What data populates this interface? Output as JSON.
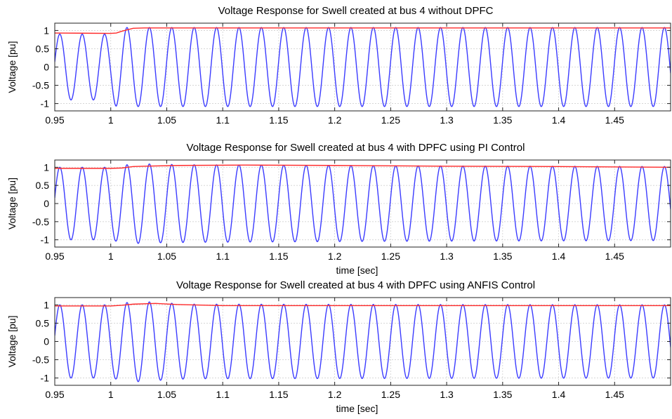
{
  "chart_data": [
    {
      "type": "line",
      "title": "Voltage Response for Swell created at bus 4 without DPFC",
      "xlabel": "",
      "ylabel": "Voltage [pu]",
      "xlim": [
        0.95,
        1.5
      ],
      "ylim": [
        -1.2,
        1.2
      ],
      "xticks": [
        0.95,
        1.0,
        1.05,
        1.1,
        1.15,
        1.2,
        1.25,
        1.3,
        1.35,
        1.4,
        1.45
      ],
      "xtick_labels": [
        "0.95",
        "1",
        "1.05",
        "1.1",
        "1.15",
        "1.2",
        "1.25",
        "1.3",
        "1.35",
        "1.4",
        "1.45"
      ],
      "yticks": [
        -1,
        -0.5,
        0,
        0.5,
        1
      ],
      "ytick_labels": [
        "-1",
        "-0.5",
        "0",
        "0.5",
        "1"
      ],
      "grid": true,
      "frequency_hz": 50,
      "series": [
        {
          "kind": "instantaneous",
          "color": "#3b3bff",
          "amplitude_points": [
            [
              0.95,
              0.9
            ],
            [
              1.0,
              0.9
            ],
            [
              1.005,
              1.08
            ],
            [
              1.025,
              1.08
            ],
            [
              1.5,
              1.08
            ]
          ]
        },
        {
          "kind": "rms",
          "color": "#ff2a2a",
          "points": [
            [
              0.95,
              0.93
            ],
            [
              1.0,
              0.92
            ],
            [
              1.005,
              0.93
            ],
            [
              1.01,
              0.98
            ],
            [
              1.02,
              1.06
            ],
            [
              1.03,
              1.07
            ],
            [
              1.5,
              1.07
            ]
          ]
        }
      ]
    },
    {
      "type": "line",
      "title": "Voltage Response for Swell created at bus 4 with DPFC using PI Control",
      "xlabel": "time [sec]",
      "ylabel": "Voltage [pu]",
      "xlim": [
        0.95,
        1.5
      ],
      "ylim": [
        -1.2,
        1.2
      ],
      "xticks": [
        0.95,
        1.0,
        1.05,
        1.1,
        1.15,
        1.2,
        1.25,
        1.3,
        1.35,
        1.4,
        1.45
      ],
      "xtick_labels": [
        "0.95",
        "1",
        "1.05",
        "1.1",
        "1.15",
        "1.2",
        "1.25",
        "1.3",
        "1.35",
        "1.4",
        "1.45"
      ],
      "yticks": [
        -1,
        -0.5,
        0,
        0.5,
        1
      ],
      "ytick_labels": [
        "-1",
        "-0.5",
        "0",
        "0.5",
        "1"
      ],
      "grid": true,
      "frequency_hz": 50,
      "series": [
        {
          "kind": "instantaneous",
          "color": "#3b3bff",
          "amplitude_points": [
            [
              0.95,
              1.0
            ],
            [
              1.0,
              1.0
            ],
            [
              1.005,
              1.04
            ],
            [
              1.025,
              1.1
            ],
            [
              1.045,
              1.08
            ],
            [
              1.07,
              1.07
            ],
            [
              1.25,
              1.04
            ],
            [
              1.5,
              1.02
            ]
          ]
        },
        {
          "kind": "rms",
          "color": "#ff2a2a",
          "points": [
            [
              0.95,
              0.97
            ],
            [
              1.0,
              0.97
            ],
            [
              1.01,
              0.98
            ],
            [
              1.02,
              1.02
            ],
            [
              1.03,
              1.03
            ],
            [
              1.06,
              1.05
            ],
            [
              1.12,
              1.06
            ],
            [
              1.2,
              1.05
            ],
            [
              1.3,
              1.03
            ],
            [
              1.4,
              1.02
            ],
            [
              1.5,
              1.0
            ]
          ]
        }
      ]
    },
    {
      "type": "line",
      "title": "Voltage Response for Swell created at bus 4 with DPFC using ANFIS Control",
      "xlabel": "time [sec]",
      "ylabel": "Voltage [pu]",
      "xlim": [
        0.95,
        1.5
      ],
      "ylim": [
        -1.2,
        1.2
      ],
      "xticks": [
        0.95,
        1.0,
        1.05,
        1.1,
        1.15,
        1.2,
        1.25,
        1.3,
        1.35,
        1.4,
        1.45
      ],
      "xtick_labels": [
        "0.95",
        "1",
        "1.05",
        "1.1",
        "1.15",
        "1.2",
        "1.25",
        "1.3",
        "1.35",
        "1.4",
        "1.45"
      ],
      "yticks": [
        -1,
        -0.5,
        0,
        0.5,
        1
      ],
      "ytick_labels": [
        "-1",
        "-0.5",
        "0",
        "0.5",
        "1"
      ],
      "grid": true,
      "frequency_hz": 50,
      "series": [
        {
          "kind": "instantaneous",
          "color": "#3b3bff",
          "amplitude_points": [
            [
              0.95,
              1.0
            ],
            [
              1.0,
              1.0
            ],
            [
              1.005,
              1.03
            ],
            [
              1.025,
              1.1
            ],
            [
              1.045,
              1.06
            ],
            [
              1.07,
              1.02
            ],
            [
              1.5,
              1.0
            ]
          ]
        },
        {
          "kind": "rms",
          "color": "#ff2a2a",
          "points": [
            [
              0.95,
              0.97
            ],
            [
              1.0,
              0.97
            ],
            [
              1.01,
              0.99
            ],
            [
              1.02,
              1.02
            ],
            [
              1.04,
              1.04
            ],
            [
              1.06,
              1.01
            ],
            [
              1.1,
              0.98
            ],
            [
              1.2,
              0.98
            ],
            [
              1.5,
              0.98
            ]
          ]
        }
      ]
    }
  ]
}
